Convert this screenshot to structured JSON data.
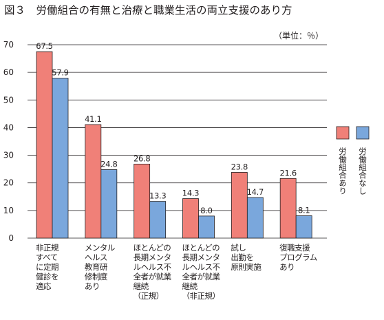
{
  "title": "図３　労働組合の有無と治療と職業生活の両立支援のあり方",
  "unit": "（単位：％）",
  "colors": {
    "series_a": "#f08078",
    "series_b": "#7aa7dc",
    "edge": "#231f20"
  },
  "chart_data": {
    "type": "bar",
    "ylim": [
      0,
      70
    ],
    "yticks": [
      "0",
      "10",
      "20",
      "30",
      "40",
      "50",
      "60",
      "70"
    ],
    "grid": true,
    "legend_position": "right",
    "categories": [
      [
        "非正規",
        "すべて",
        "に定期",
        "健診を",
        "適応"
      ],
      [
        "メンタル",
        "ヘルス",
        "教育研",
        "修制度",
        "あり"
      ],
      [
        "ほとんどの",
        "長期メンタ",
        "ルヘルス不",
        "全者が就業",
        "継続",
        "（正規）"
      ],
      [
        "ほとんどの",
        "長期メンタ",
        "ルヘルス不",
        "全者が就業",
        "継続",
        "（非正規）"
      ],
      [
        "試し",
        "出勤を",
        "原則実施"
      ],
      [
        "復職支援",
        "プログラム",
        "あり"
      ]
    ],
    "series": [
      {
        "name": "労働組合あり",
        "values": [
          67.5,
          41.1,
          26.8,
          14.3,
          23.8,
          21.6
        ],
        "labels": [
          "67.5",
          "41.1",
          "26.8",
          "14.3",
          "23.8",
          "21.6"
        ]
      },
      {
        "name": "労働組合なし",
        "values": [
          57.9,
          24.8,
          13.3,
          8.0,
          14.7,
          8.1
        ],
        "labels": [
          "57.9",
          "24.8",
          "13.3",
          "8.0",
          "14.7",
          "8.1"
        ]
      }
    ]
  }
}
